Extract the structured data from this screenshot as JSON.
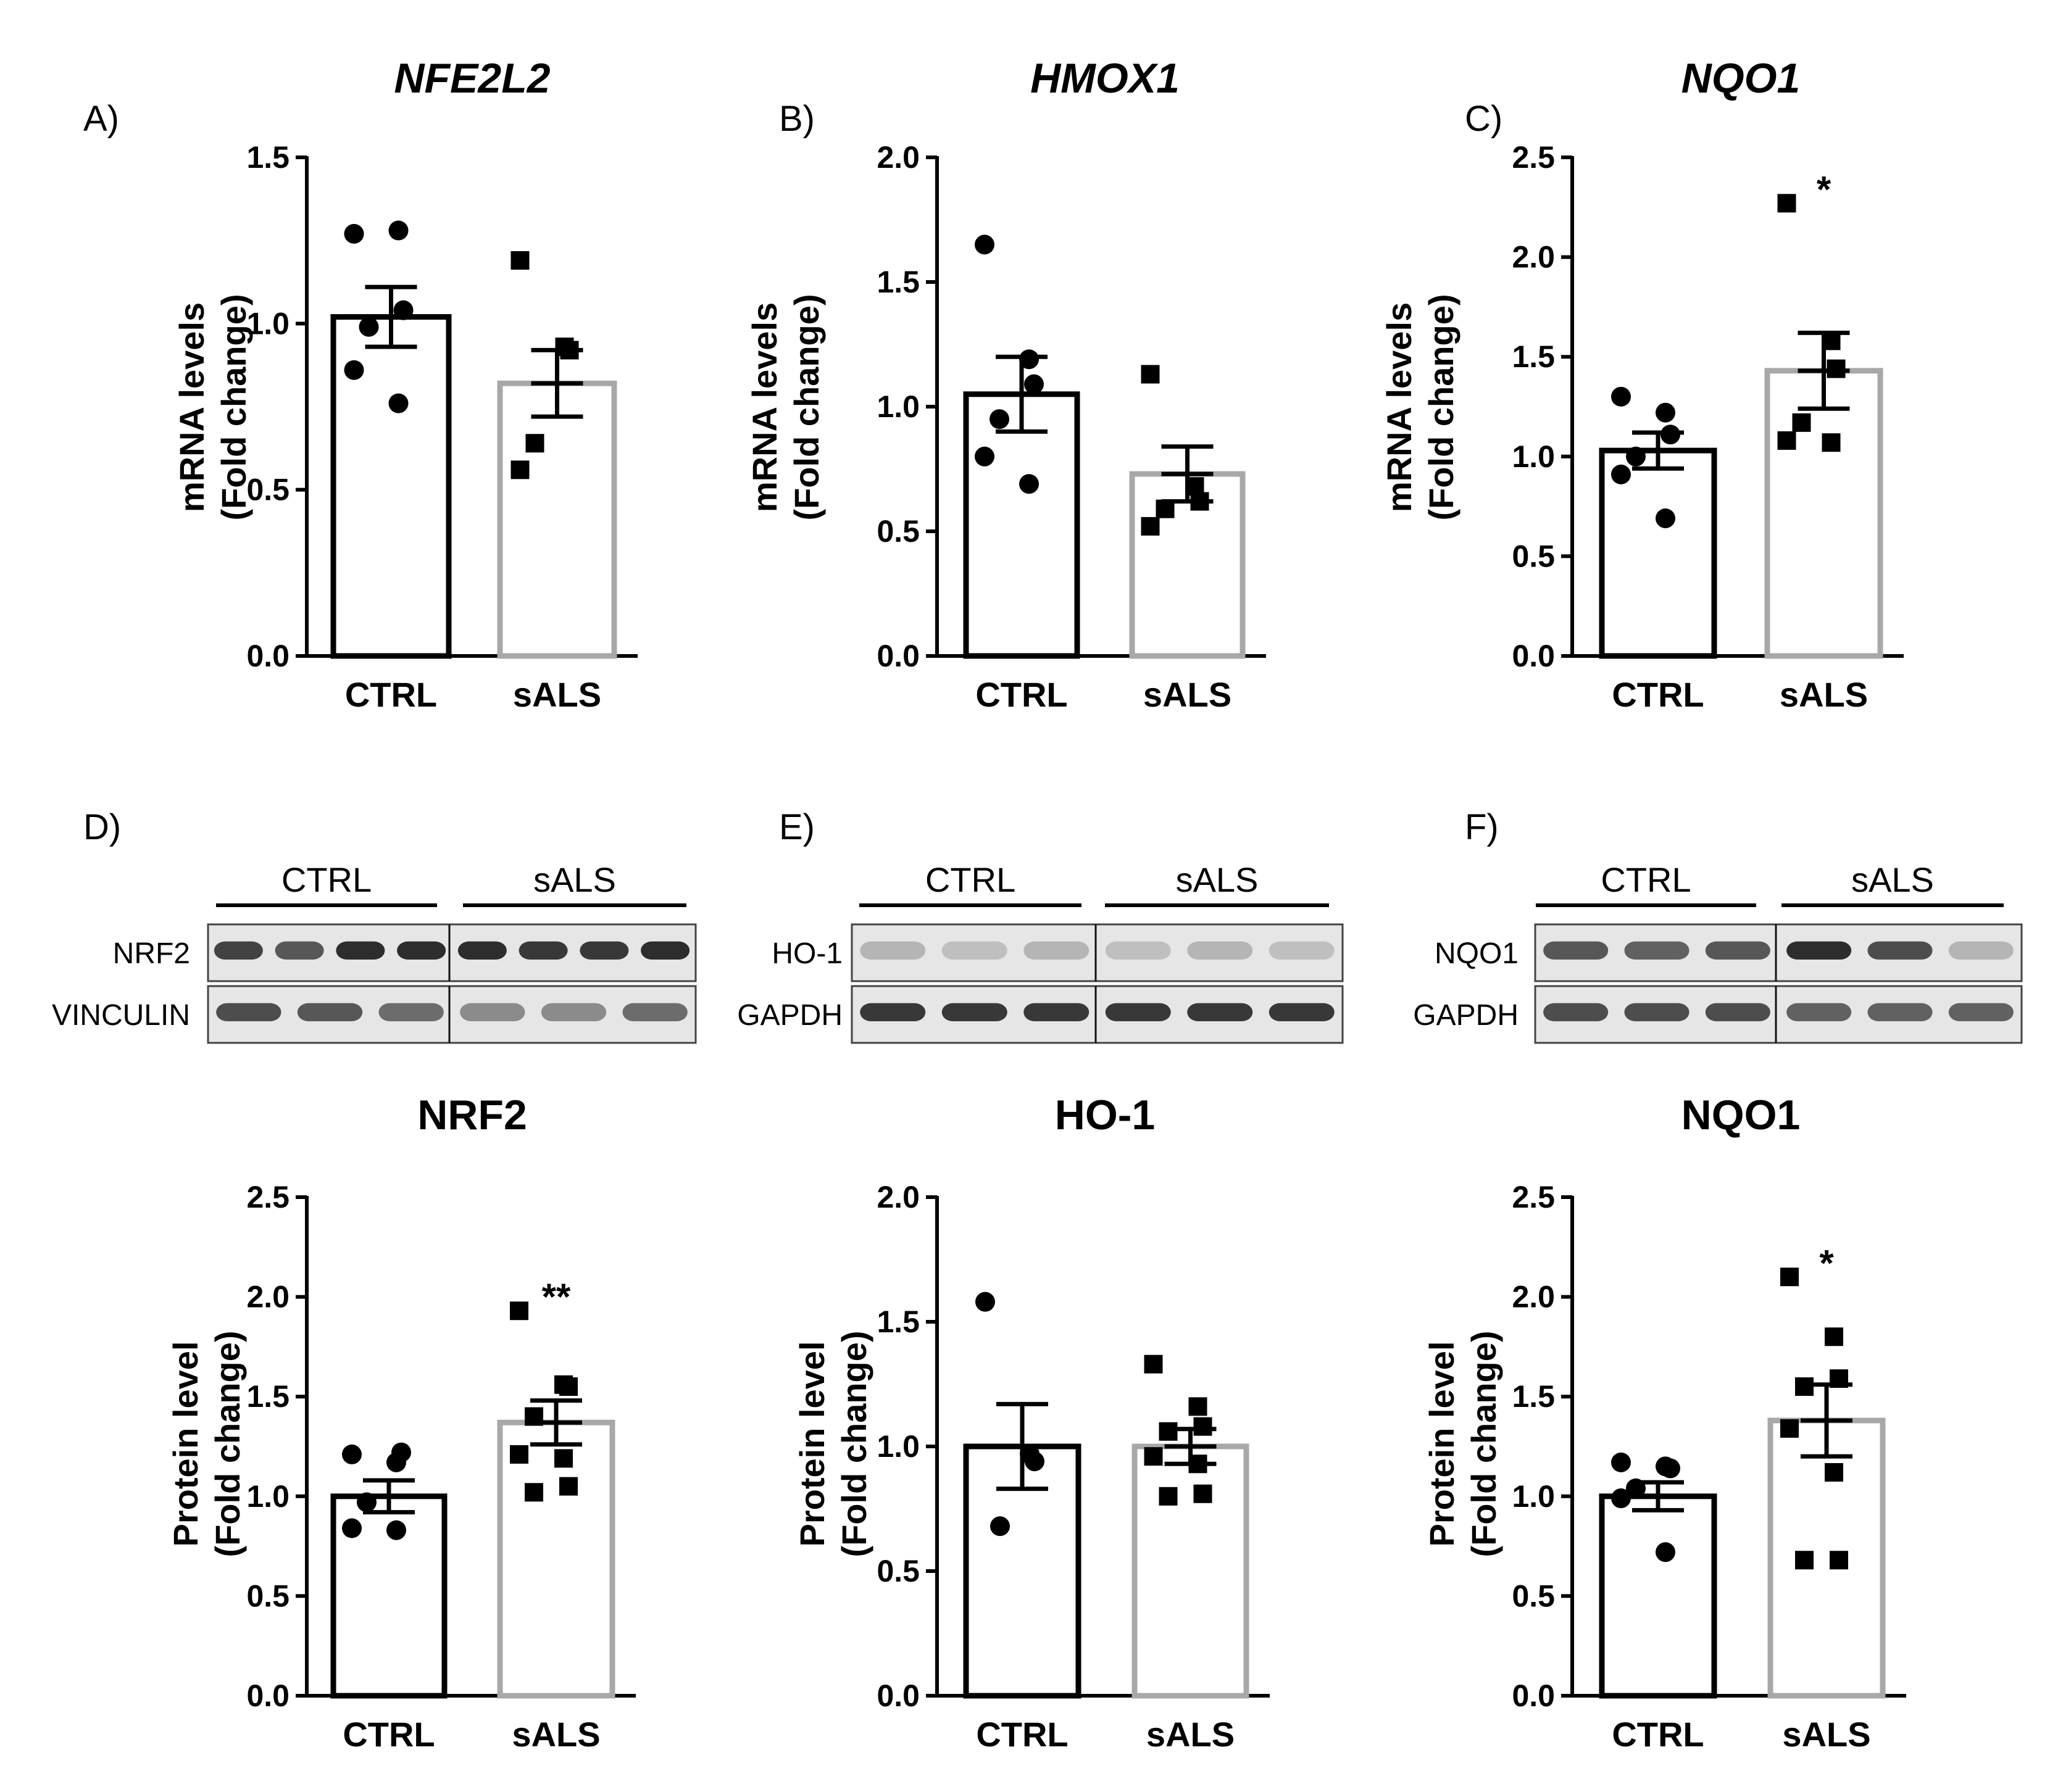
{
  "figure": {
    "colors": {
      "ctrl": "#000000",
      "sals": "#a8a8a8",
      "axis": "#000000"
    }
  },
  "chart_data": [
    {
      "panel": "A)",
      "type": "bar",
      "title": "NFE2L2",
      "title_italic": true,
      "categories": [
        "CTRL",
        "sALS"
      ],
      "ylabel_line1": "mRNA levels",
      "ylabel_line2": "(Fold change)",
      "ylim": [
        0,
        1.5
      ],
      "yticks": [
        0,
        0.5,
        1.0,
        1.5
      ],
      "ytick_labels": [
        "0.0",
        "0.5",
        "1.0",
        "1.5"
      ],
      "means": [
        1.02,
        0.82
      ],
      "sem": [
        0.09,
        0.1
      ],
      "points": [
        [
          1.27,
          1.28,
          1.04,
          0.99,
          0.86,
          0.76
        ],
        [
          1.19,
          0.93,
          0.92,
          0.64,
          0.56
        ]
      ],
      "significance": ""
    },
    {
      "panel": "B)",
      "type": "bar",
      "title": "HMOX1",
      "title_italic": true,
      "categories": [
        "CTRL",
        "sALS"
      ],
      "ylabel_line1": "mRNA levels",
      "ylabel_line2": "(Fold change)",
      "ylim": [
        0,
        2.0
      ],
      "yticks": [
        0,
        0.5,
        1.0,
        1.5,
        2.0
      ],
      "ytick_labels": [
        "0.0",
        "0.5",
        "1.0",
        "1.5",
        "2.0"
      ],
      "means": [
        1.05,
        0.73
      ],
      "sem": [
        0.15,
        0.11
      ],
      "points": [
        [
          1.65,
          1.19,
          1.09,
          0.95,
          0.8,
          0.69
        ],
        [
          1.13,
          0.68,
          0.62,
          0.59,
          0.52
        ]
      ],
      "significance": ""
    },
    {
      "panel": "C)",
      "type": "bar",
      "title": "NQO1",
      "title_italic": true,
      "categories": [
        "CTRL",
        "sALS"
      ],
      "ylabel_line1": "mRNA levels",
      "ylabel_line2": "(Fold change)",
      "ylim": [
        0,
        2.5
      ],
      "yticks": [
        0,
        0.5,
        1.0,
        1.5,
        2.0,
        2.5
      ],
      "ytick_labels": [
        "0.0",
        "0.5",
        "1.0",
        "1.5",
        "2.0",
        "2.5"
      ],
      "means": [
        1.03,
        1.43
      ],
      "sem": [
        0.09,
        0.19
      ],
      "points": [
        [
          1.3,
          1.22,
          1.11,
          1.0,
          0.91,
          0.69
        ],
        [
          2.27,
          1.58,
          1.44,
          1.17,
          1.08,
          1.07
        ]
      ],
      "significance": "*"
    },
    {
      "panel": "D)",
      "type": "bar",
      "title": "NRF2",
      "title_italic": false,
      "categories": [
        "CTRL",
        "sALS"
      ],
      "ylabel_line1": "Protein level",
      "ylabel_line2": "(Fold change)",
      "ylim": [
        0,
        2.5
      ],
      "yticks": [
        0,
        0.5,
        1.0,
        1.5,
        2.0,
        2.5
      ],
      "ytick_labels": [
        "0.0",
        "0.5",
        "1.0",
        "1.5",
        "2.0",
        "2.5"
      ],
      "means": [
        1.0,
        1.37
      ],
      "sem": [
        0.08,
        0.11
      ],
      "points": [
        [
          1.21,
          1.17,
          1.22,
          0.97,
          0.84,
          0.83
        ],
        [
          1.93,
          1.56,
          1.55,
          1.4,
          1.21,
          1.19,
          1.05,
          1.02
        ]
      ],
      "significance": "**"
    },
    {
      "panel": "E)",
      "type": "bar",
      "title": "HO-1",
      "title_italic": false,
      "categories": [
        "CTRL",
        "sALS"
      ],
      "ylabel_line1": "Protein level",
      "ylabel_line2": "(Fold change)",
      "ylim": [
        0,
        2.0
      ],
      "yticks": [
        0,
        0.5,
        1.0,
        1.5,
        2.0
      ],
      "ytick_labels": [
        "0.0",
        "0.5",
        "1.0",
        "1.5",
        "2.0"
      ],
      "means": [
        1.0,
        1.0
      ],
      "sem": [
        0.17,
        0.07
      ],
      "points": [
        [
          1.58,
          0.97,
          0.94,
          0.68
        ],
        [
          1.33,
          1.16,
          1.08,
          1.06,
          0.96,
          0.93,
          0.81,
          0.8
        ]
      ],
      "significance": ""
    },
    {
      "panel": "F)",
      "type": "bar",
      "title": "NQO1",
      "title_italic": false,
      "categories": [
        "CTRL",
        "sALS"
      ],
      "ylabel_line1": "Protein level",
      "ylabel_line2": "(Fold change)",
      "ylim": [
        0,
        2.5
      ],
      "yticks": [
        0,
        0.5,
        1.0,
        1.5,
        2.0,
        2.5
      ],
      "ytick_labels": [
        "0.0",
        "0.5",
        "1.0",
        "1.5",
        "2.0",
        "2.5"
      ],
      "means": [
        1.0,
        1.38
      ],
      "sem": [
        0.07,
        0.18
      ],
      "points": [
        [
          1.17,
          1.15,
          1.14,
          1.04,
          0.99,
          0.72
        ],
        [
          2.1,
          1.8,
          1.59,
          1.55,
          1.34,
          1.12,
          0.68,
          0.68
        ]
      ],
      "significance": "*"
    }
  ],
  "blots": [
    {
      "panel": "D)",
      "group_labels": [
        "CTRL",
        "sALS"
      ],
      "rows": [
        {
          "label": "NRF2",
          "intensities": [
            0.9,
            0.8,
            1.0,
            1.0,
            1.0,
            0.95,
            0.95,
            1.0
          ]
        },
        {
          "label": "VINCULIN",
          "intensities": [
            0.85,
            0.8,
            0.7,
            0.55,
            0.55,
            0.7
          ]
        }
      ]
    },
    {
      "panel": "E)",
      "group_labels": [
        "CTRL",
        "sALS"
      ],
      "rows": [
        {
          "label": "HO-1",
          "intensities": [
            0.35,
            0.3,
            0.35,
            0.3,
            0.35,
            0.3
          ]
        },
        {
          "label": "GAPDH",
          "intensities": [
            0.95,
            0.95,
            0.95,
            0.95,
            0.95,
            0.95
          ]
        }
      ]
    },
    {
      "panel": "F)",
      "group_labels": [
        "CTRL",
        "sALS"
      ],
      "rows": [
        {
          "label": "NQO1",
          "intensities": [
            0.8,
            0.75,
            0.8,
            1.0,
            0.85,
            0.35
          ]
        },
        {
          "label": "GAPDH",
          "intensities": [
            0.85,
            0.85,
            0.85,
            0.75,
            0.75,
            0.75
          ]
        }
      ]
    }
  ]
}
